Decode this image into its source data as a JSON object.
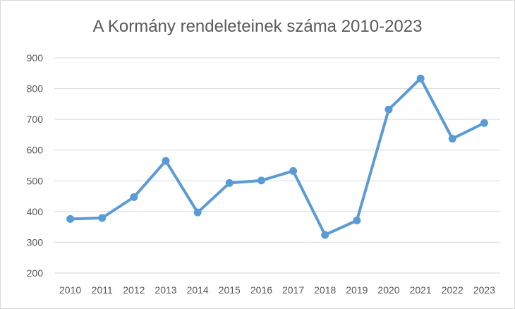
{
  "chart_data": {
    "type": "line",
    "title": "A Kormány rendeleteinek száma 2010-2023",
    "xlabel": "",
    "ylabel": "",
    "categories": [
      "2010",
      "2011",
      "2012",
      "2013",
      "2014",
      "2015",
      "2016",
      "2017",
      "2018",
      "2019",
      "2020",
      "2021",
      "2022",
      "2023"
    ],
    "series": [
      {
        "values": [
          376,
          379,
          447,
          565,
          397,
          493,
          501,
          532,
          324,
          371,
          732,
          833,
          637,
          688
        ]
      }
    ],
    "ylim": [
      200,
      900
    ],
    "yticks": [
      "200",
      "300",
      "400",
      "500",
      "600",
      "700",
      "800",
      "900"
    ],
    "grid": true,
    "legend": "none",
    "markers": true,
    "colors": {
      "series": "#5b9bd5",
      "grid": "#d9d9d9",
      "text": "#595959"
    }
  }
}
